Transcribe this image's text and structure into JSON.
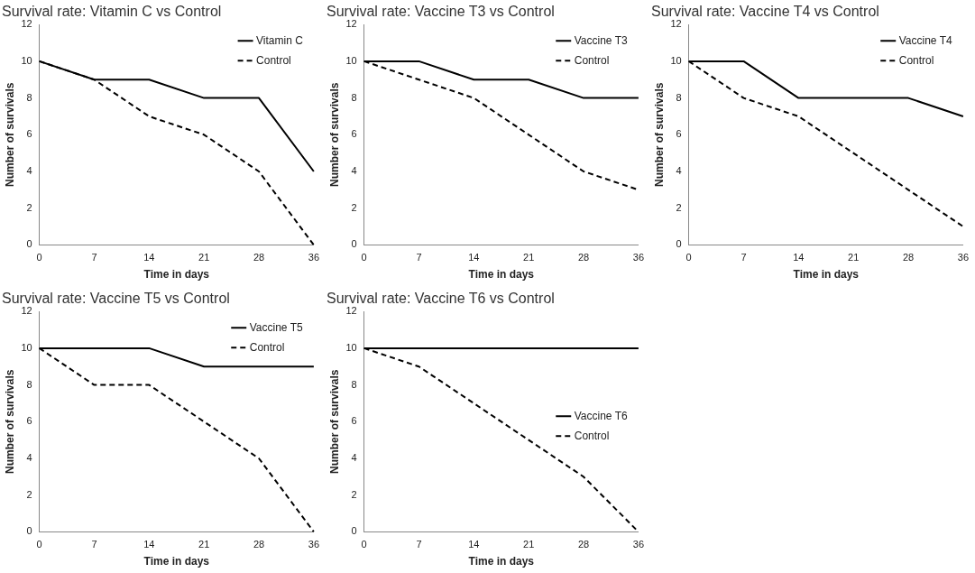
{
  "chart_data": [
    {
      "type": "line",
      "title": "Survival rate: Vitamin C vs Control",
      "xlabel": "Time in days",
      "ylabel": "Number of survivals",
      "categories": [
        "0",
        "7",
        "14",
        "21",
        "28",
        "36"
      ],
      "ylim": [
        0,
        12
      ],
      "yticks": [
        0,
        2,
        4,
        6,
        8,
        10,
        12
      ],
      "grid": false,
      "marker": "none",
      "legend": "top right",
      "series": [
        {
          "name": "Vitamin C",
          "color": "#000000",
          "line_style": "solid",
          "values": [
            10,
            9,
            9,
            8,
            8,
            4
          ]
        },
        {
          "name": "Control",
          "color": "#000000",
          "line_style": "dashed",
          "values": [
            10,
            9,
            7,
            6,
            4,
            0
          ]
        }
      ]
    },
    {
      "type": "line",
      "title": "Survival rate: Vaccine T3 vs Control",
      "xlabel": "Time in days",
      "ylabel": "Number of survivals",
      "categories": [
        "0",
        "7",
        "14",
        "21",
        "28",
        "36"
      ],
      "ylim": [
        0,
        12
      ],
      "yticks": [
        0,
        2,
        4,
        6,
        8,
        10,
        12
      ],
      "grid": false,
      "marker": "none",
      "legend": "top right",
      "series": [
        {
          "name": "Vaccine T3",
          "color": "#000000",
          "line_style": "solid",
          "values": [
            10,
            10,
            9,
            9,
            8,
            8
          ]
        },
        {
          "name": "Control",
          "color": "#000000",
          "line_style": "dashed",
          "values": [
            10,
            9,
            8,
            6,
            4,
            3
          ]
        }
      ]
    },
    {
      "type": "line",
      "title": "Survival rate: Vaccine T4 vs Control",
      "xlabel": "Time in days",
      "ylabel": "Number of survivals",
      "categories": [
        "0",
        "7",
        "14",
        "21",
        "28",
        "36"
      ],
      "ylim": [
        0,
        12
      ],
      "yticks": [
        0,
        2,
        4,
        6,
        8,
        10,
        12
      ],
      "grid": false,
      "marker": "none",
      "legend": "top right",
      "series": [
        {
          "name": "Vaccine T4",
          "color": "#000000",
          "line_style": "solid",
          "values": [
            10,
            10,
            8,
            8,
            8,
            7
          ]
        },
        {
          "name": "Control",
          "color": "#000000",
          "line_style": "dashed",
          "values": [
            10,
            8,
            7,
            5,
            3,
            1
          ]
        }
      ]
    },
    {
      "type": "line",
      "title": "Survival rate: Vaccine T5 vs Control",
      "xlabel": "Time in days",
      "ylabel": "Number of survivals",
      "categories": [
        "0",
        "7",
        "14",
        "21",
        "28",
        "36"
      ],
      "ylim": [
        0,
        12
      ],
      "yticks": [
        0,
        2,
        4,
        6,
        8,
        10,
        12
      ],
      "grid": false,
      "marker": "none",
      "legend": "top right",
      "series": [
        {
          "name": "Vaccine T5",
          "color": "#000000",
          "line_style": "solid",
          "values": [
            10,
            10,
            10,
            9,
            9,
            9
          ]
        },
        {
          "name": "Control",
          "color": "#000000",
          "line_style": "dashed",
          "values": [
            10,
            8,
            8,
            6,
            4,
            0
          ]
        }
      ]
    },
    {
      "type": "line",
      "title": "Survival rate: Vaccine T6 vs Control",
      "xlabel": "Time in days",
      "ylabel": "Number of survivals",
      "categories": [
        "0",
        "7",
        "14",
        "21",
        "28",
        "36"
      ],
      "ylim": [
        0,
        12
      ],
      "yticks": [
        0,
        2,
        4,
        6,
        8,
        10,
        12
      ],
      "grid": false,
      "marker": "none",
      "legend": "right",
      "series": [
        {
          "name": "Vaccine T6",
          "color": "#000000",
          "line_style": "solid",
          "values": [
            10,
            10,
            10,
            10,
            10,
            10
          ]
        },
        {
          "name": "Control",
          "color": "#000000",
          "line_style": "dashed",
          "values": [
            10,
            9,
            7,
            5,
            3,
            0
          ]
        }
      ]
    }
  ]
}
